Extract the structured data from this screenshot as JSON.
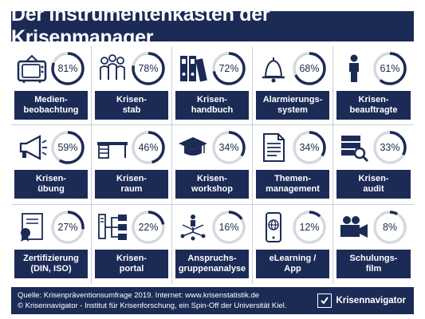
{
  "title": "Der Instrumentenkasten der Krisenmanager",
  "chart_data": {
    "type": "pie",
    "items": [
      {
        "label": "Medien-\nbeobachtung",
        "value": 81,
        "display": "81%",
        "icon": "tv-icon"
      },
      {
        "label": "Krisen-\nstab",
        "value": 78,
        "display": "78%",
        "icon": "team-icon"
      },
      {
        "label": "Krisen-\nhandbuch",
        "value": 72,
        "display": "72%",
        "icon": "binders-icon"
      },
      {
        "label": "Alarmierungs-\nsystem",
        "value": 68,
        "display": "68%",
        "icon": "bell-icon"
      },
      {
        "label": "Krisen-\nbeauftragte",
        "value": 61,
        "display": "61%",
        "icon": "person-icon"
      },
      {
        "label": "Krisen-\nübung",
        "value": 59,
        "display": "59%",
        "icon": "megaphone-icon"
      },
      {
        "label": "Krisen-\nraum",
        "value": 46,
        "display": "46%",
        "icon": "desk-icon"
      },
      {
        "label": "Krisen-\nworkshop",
        "value": 34,
        "display": "34%",
        "icon": "graduation-cap-icon"
      },
      {
        "label": "Themen-\nmanagement",
        "value": 34,
        "display": "34%",
        "icon": "document-icon"
      },
      {
        "label": "Krisen-\naudit",
        "value": 33,
        "display": "33%",
        "icon": "server-search-icon"
      },
      {
        "label": "Zertifizierung\n(DIN, ISO)",
        "value": 27,
        "display": "27%",
        "icon": "certificate-icon"
      },
      {
        "label": "Krisen-\nportal",
        "value": 22,
        "display": "22%",
        "icon": "network-icon"
      },
      {
        "label": "Anspruchs-\ngruppenanalyse",
        "value": 16,
        "display": "16%",
        "icon": "stakeholder-icon"
      },
      {
        "label": "eLearning /\nApp",
        "value": 12,
        "display": "12%",
        "icon": "smartphone-icon"
      },
      {
        "label": "Schulungs-\nfilm",
        "value": 8,
        "display": "8%",
        "icon": "camera-icon"
      }
    ]
  },
  "footer": {
    "source": "Quelle: Krisenpräventionsumfrage 2019.  Internet: www.krisenstatistik.de",
    "copyright": "© Krisennavigator - Institut für Krisenforschung, ein Spin-Off der Universität Kiel.",
    "brand": "Krisennavigator"
  },
  "colors": {
    "navy": "#1c2b56",
    "ring_track": "#d5d8de",
    "ring_fill": "#1c2b56"
  }
}
